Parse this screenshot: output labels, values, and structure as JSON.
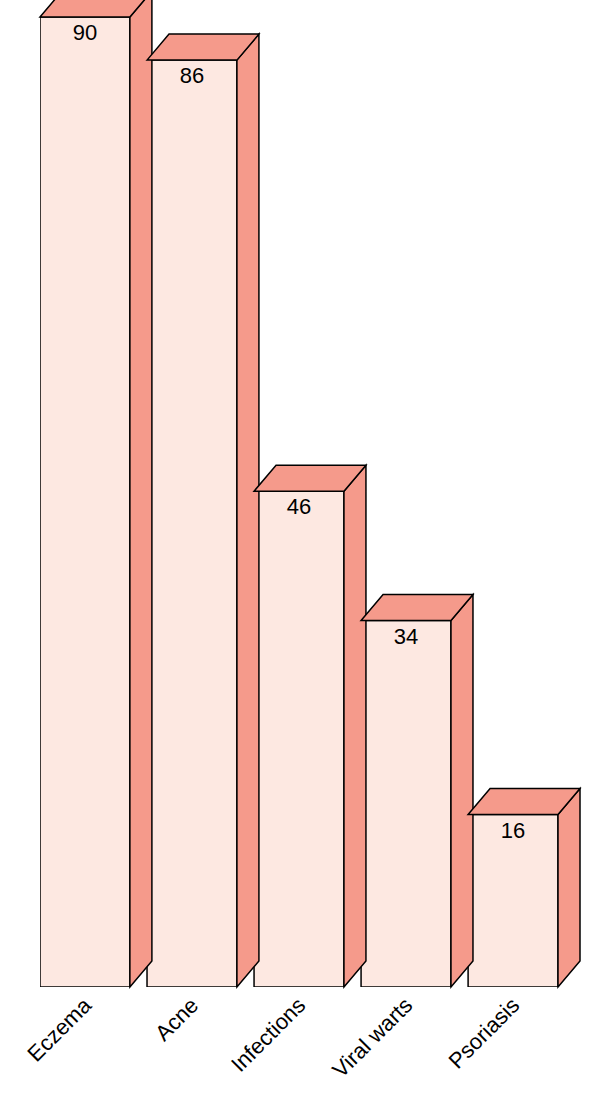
{
  "chart_data": {
    "type": "bar",
    "categories": [
      "Eczema",
      "Acne",
      "Infections",
      "Viral warts",
      "Psoriasis"
    ],
    "values": [
      90,
      86,
      46,
      34,
      16
    ],
    "color": "#fde8e1",
    "ylim": [
      0,
      90
    ],
    "data_labels": true,
    "tick_labels": "x",
    "grid": false
  }
}
